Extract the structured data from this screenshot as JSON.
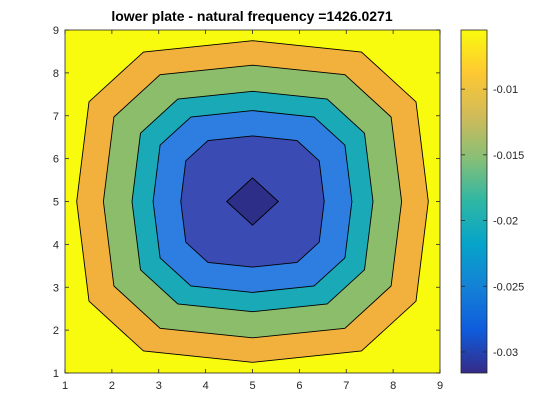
{
  "chart_data": {
    "type": "contour",
    "title": "lower plate - natural frequency =1426.0271",
    "xlabel": "",
    "ylabel": "",
    "xlim": [
      1,
      9
    ],
    "ylim": [
      1,
      9
    ],
    "x_ticks": [
      "1",
      "2",
      "3",
      "4",
      "5",
      "6",
      "7",
      "8",
      "9"
    ],
    "y_ticks": [
      "1",
      "2",
      "3",
      "4",
      "5",
      "6",
      "7",
      "8",
      "9"
    ],
    "grid": false,
    "field": {
      "center": [
        5,
        5
      ],
      "min": -0.0316,
      "max": -0.0055
    },
    "levels": [
      {
        "level": -0.0055,
        "half_extent": 4.0,
        "color": "#f9fb0e"
      },
      {
        "level": -0.0095,
        "half_extent": 3.75,
        "color": "#f2b13c"
      },
      {
        "level": -0.0138,
        "half_extent": 3.18,
        "color": "#8bbd6a"
      },
      {
        "level": -0.0182,
        "half_extent": 2.57,
        "color": "#1aa9b7"
      },
      {
        "level": -0.0226,
        "half_extent": 2.12,
        "color": "#2e7de0"
      },
      {
        "level": -0.027,
        "half_extent": 1.53,
        "color": "#3a4bb3"
      },
      {
        "level": -0.031,
        "half_extent": 0.55,
        "color": "#2c2e88"
      }
    ],
    "colorbar": {
      "range": [
        -0.0316,
        -0.0055
      ],
      "ticks": [
        {
          "value": -0.01,
          "label": "-0.01"
        },
        {
          "value": -0.015,
          "label": "-0.015"
        },
        {
          "value": -0.02,
          "label": "-0.02"
        },
        {
          "value": -0.025,
          "label": "-0.025"
        },
        {
          "value": -0.03,
          "label": "-0.03"
        }
      ],
      "colors": [
        "#352a87",
        "#0f5cdd",
        "#1481d6",
        "#06a4ca",
        "#2eb7a4",
        "#87bf77",
        "#d1bb59",
        "#fec832",
        "#f9fb0e"
      ]
    }
  }
}
